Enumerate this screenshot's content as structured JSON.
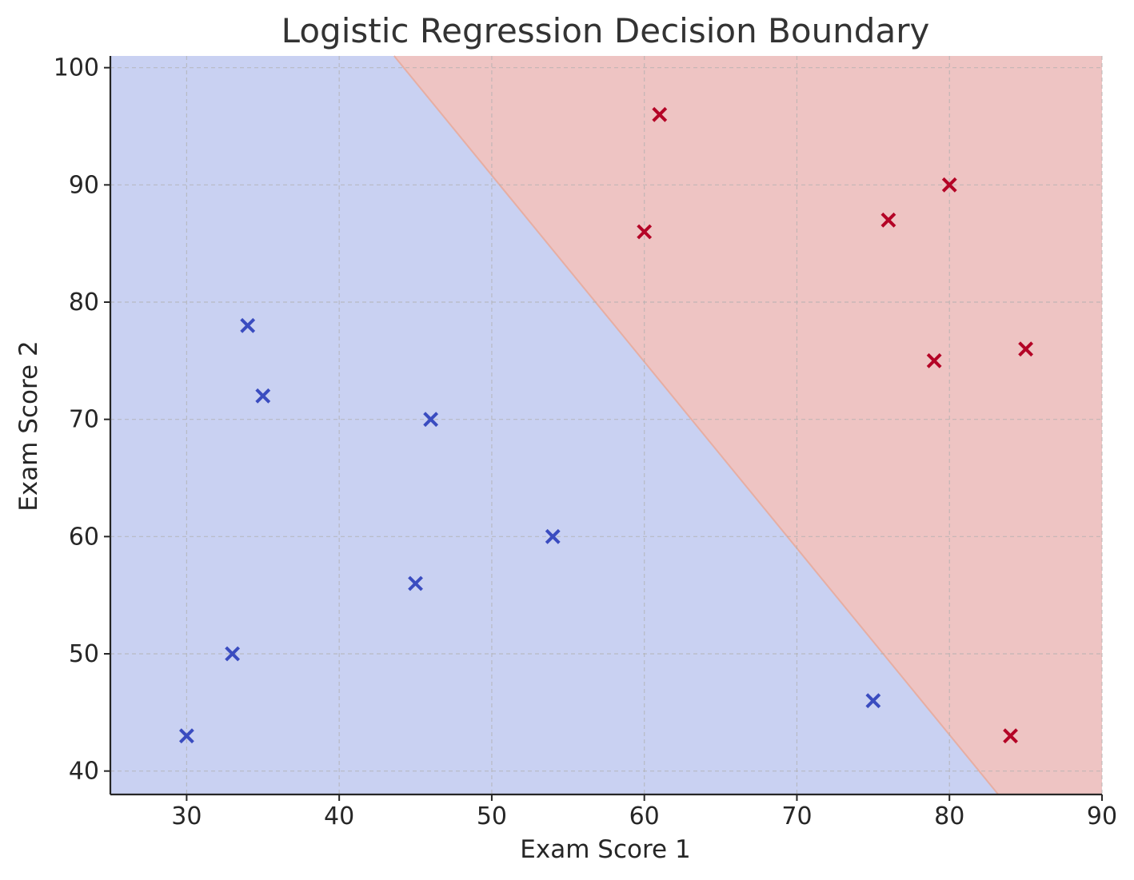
{
  "chart_data": {
    "type": "scatter",
    "title": "Logistic Regression Decision Boundary",
    "xlabel": "Exam Score 1",
    "ylabel": "Exam Score 2",
    "xlim": [
      25,
      90
    ],
    "ylim": [
      38,
      101
    ],
    "xticks": [
      30,
      40,
      50,
      60,
      70,
      80,
      90
    ],
    "yticks": [
      40,
      50,
      60,
      70,
      80,
      90,
      100
    ],
    "grid": true,
    "marker": "x",
    "decision_boundary": {
      "points": [
        [
          43.6,
          101
        ],
        [
          83.2,
          38
        ]
      ],
      "negative_region_color": "#c9d1f2",
      "positive_region_color": "#eec4c3"
    },
    "series": [
      {
        "color": "#3a4cc0",
        "points": [
          [
            30,
            43
          ],
          [
            33,
            50
          ],
          [
            34,
            78
          ],
          [
            35,
            72
          ],
          [
            45,
            56
          ],
          [
            46,
            70
          ],
          [
            54,
            60
          ],
          [
            75,
            46
          ]
        ]
      },
      {
        "color": "#b40426",
        "points": [
          [
            60,
            86
          ],
          [
            61,
            96
          ],
          [
            76,
            87
          ],
          [
            79,
            75
          ],
          [
            80,
            90
          ],
          [
            84,
            43
          ],
          [
            85,
            76
          ]
        ]
      }
    ]
  }
}
